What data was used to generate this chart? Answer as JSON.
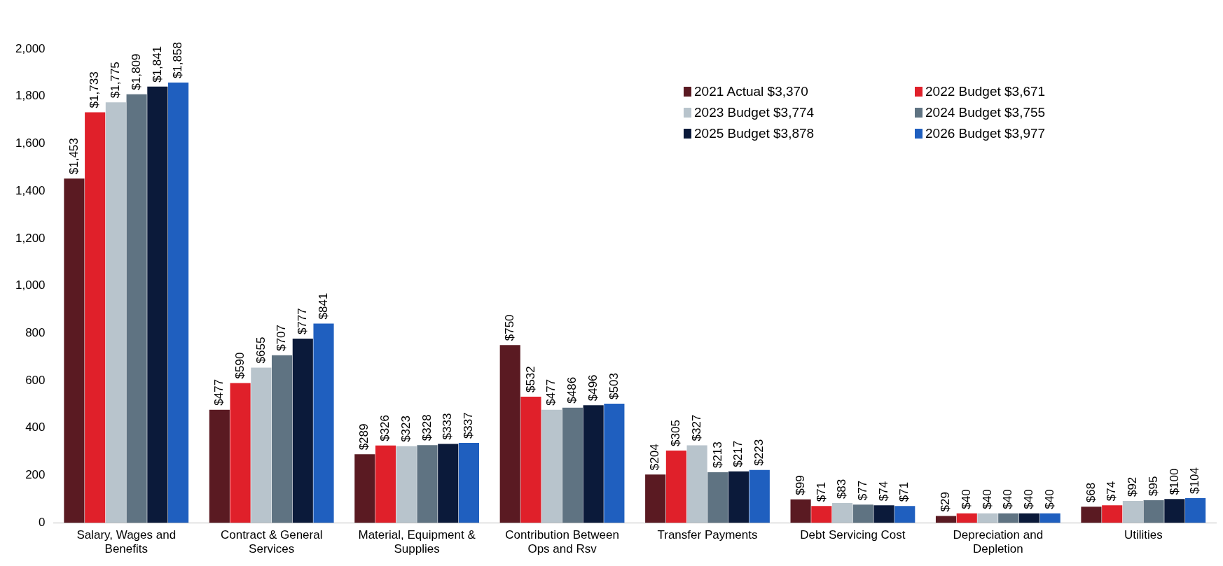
{
  "chart_data": {
    "type": "bar",
    "categories": [
      "Salary, Wages and Benefits",
      "Contract & General Services",
      "Material, Equipment & Supplies",
      "Contribution Between Ops and Rsv",
      "Transfer Payments",
      "Debt Servicing Cost",
      "Depreciation and Depletion",
      "Utilities"
    ],
    "series": [
      {
        "name": "2021 Actual $3,370",
        "color": "#5a1a22",
        "values": [
          1453,
          477,
          289,
          750,
          204,
          99,
          29,
          68
        ],
        "value_labels": [
          "$1,453",
          "$477",
          "$289",
          "$750",
          "$204",
          "$99",
          "$29",
          "$68"
        ]
      },
      {
        "name": "2022 Budget $3,671",
        "color": "#e0202a",
        "values": [
          1733,
          590,
          326,
          532,
          305,
          71,
          40,
          74
        ],
        "value_labels": [
          "$1,733",
          "$590",
          "$326",
          "$532",
          "$305",
          "$71",
          "$40",
          "$74"
        ]
      },
      {
        "name": "2023 Budget $3,774",
        "color": "#b8c4cc",
        "values": [
          1775,
          655,
          323,
          477,
          327,
          83,
          40,
          92
        ],
        "value_labels": [
          "$1,775",
          "$655",
          "$323",
          "$477",
          "$327",
          "$83",
          "$40",
          "$92"
        ]
      },
      {
        "name": "2024 Budget $3,755",
        "color": "#5f7382",
        "values": [
          1809,
          707,
          328,
          486,
          213,
          77,
          40,
          95
        ],
        "value_labels": [
          "$1,809",
          "$707",
          "$328",
          "$486",
          "$213",
          "$77",
          "$40",
          "$95"
        ]
      },
      {
        "name": "2025 Budget $3,878",
        "color": "#0b1a3a",
        "values": [
          1841,
          777,
          333,
          496,
          217,
          74,
          40,
          100
        ],
        "value_labels": [
          "$1,841",
          "$777",
          "$333",
          "$496",
          "$217",
          "$74",
          "$40",
          "$100"
        ]
      },
      {
        "name": "2026 Budget $3,977",
        "color": "#1f5fbf",
        "values": [
          1858,
          841,
          337,
          503,
          223,
          71,
          40,
          104
        ],
        "value_labels": [
          "$1,858",
          "$841",
          "$337",
          "$503",
          "$223",
          "$71",
          "$40",
          "$104"
        ]
      }
    ],
    "ylim": [
      0,
      2000
    ],
    "yticks": [
      0,
      {
        "value": 200,
        "label": "200"
      },
      {
        "value": 400,
        "label": "400"
      },
      {
        "value": 600,
        "label": "600"
      },
      {
        "value": 800,
        "label": "800"
      },
      {
        "value": 1000,
        "label": "1,000"
      },
      {
        "value": 1200,
        "label": "1,200"
      },
      {
        "value": 1400,
        "label": "1,400"
      },
      {
        "value": 1600,
        "label": "1,600"
      },
      {
        "value": 1800,
        "label": "1,800"
      },
      {
        "value": 2000,
        "label": "2,000"
      }
    ],
    "grid": false,
    "legend": "top right"
  }
}
